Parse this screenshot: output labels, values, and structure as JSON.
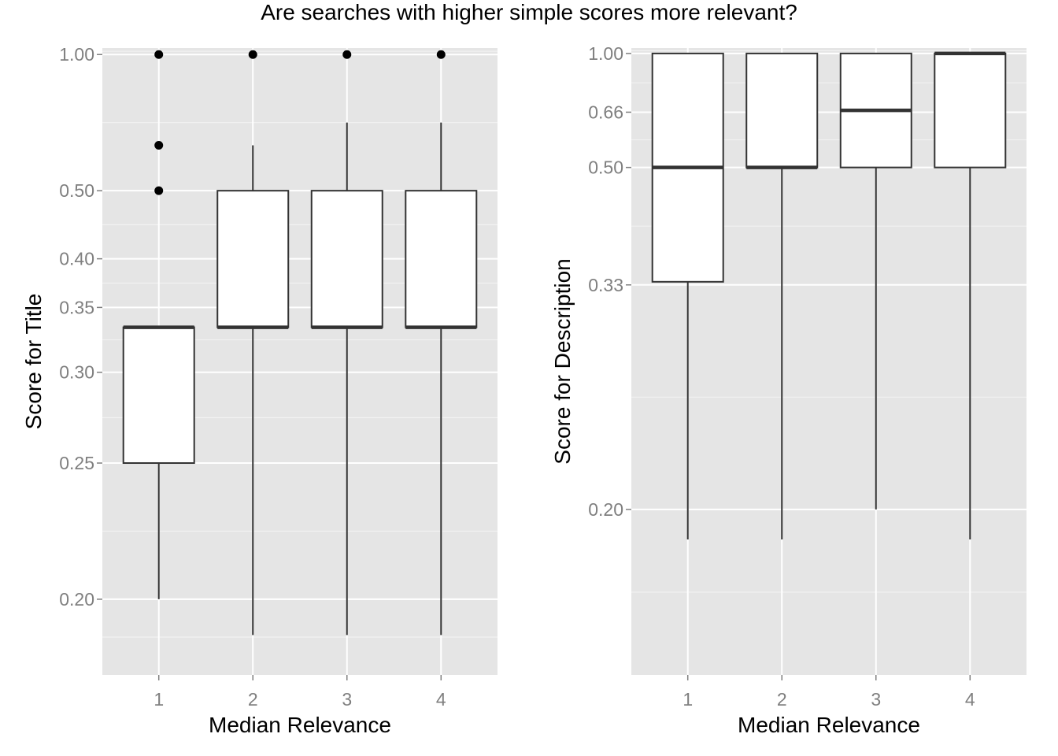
{
  "title": "Are searches with higher simple scores more relevant?",
  "chart_data": [
    {
      "type": "boxplot",
      "xlabel": "Median Relevance",
      "ylabel": "Score for Title",
      "y_scale": "reciprocal",
      "ylim": [
        0.18,
        1.05
      ],
      "y_ticks": [
        {
          "value": 1.0,
          "label": "1.00"
        },
        {
          "value": 0.5,
          "label": "0.50"
        },
        {
          "value": 0.4,
          "label": "0.40"
        },
        {
          "value": 0.35,
          "label": "0.35"
        },
        {
          "value": 0.3,
          "label": "0.30"
        },
        {
          "value": 0.25,
          "label": "0.25"
        },
        {
          "value": 0.2,
          "label": "0.20"
        }
      ],
      "categories": [
        "1",
        "2",
        "3",
        "4"
      ],
      "boxes": [
        {
          "category": "1",
          "whisker_low": 0.2,
          "q1": 0.25,
          "median": 0.333,
          "q3": 0.333,
          "whisker_high": 0.333,
          "outliers": [
            1.0,
            0.6,
            0.5
          ]
        },
        {
          "category": "2",
          "whisker_low": 0.19,
          "q1": 0.333,
          "median": 0.333,
          "q3": 0.5,
          "whisker_high": 0.6,
          "outliers": [
            1.0
          ]
        },
        {
          "category": "3",
          "whisker_low": 0.19,
          "q1": 0.333,
          "median": 0.333,
          "q3": 0.5,
          "whisker_high": 0.667,
          "outliers": [
            1.0
          ]
        },
        {
          "category": "4",
          "whisker_low": 0.19,
          "q1": 0.333,
          "median": 0.333,
          "q3": 0.5,
          "whisker_high": 0.667,
          "outliers": [
            1.0
          ]
        }
      ],
      "grid": true
    },
    {
      "type": "boxplot",
      "xlabel": "Median Relevance",
      "ylabel": "Score for Description",
      "y_scale": "reciprocal",
      "ylim": [
        0.155,
        1.05
      ],
      "y_ticks": [
        {
          "value": 1.0,
          "label": "1.00"
        },
        {
          "value": 0.66,
          "label": "0.66"
        },
        {
          "value": 0.5,
          "label": "0.50"
        },
        {
          "value": 0.33,
          "label": "0.33"
        },
        {
          "value": 0.2,
          "label": "0.20"
        }
      ],
      "categories": [
        "1",
        "2",
        "3",
        "4"
      ],
      "boxes": [
        {
          "category": "1",
          "whisker_low": 0.19,
          "q1": 0.333,
          "median": 0.5,
          "q3": 1.0,
          "whisker_high": 1.0,
          "outliers": []
        },
        {
          "category": "2",
          "whisker_low": 0.19,
          "q1": 0.5,
          "median": 0.5,
          "q3": 1.0,
          "whisker_high": 1.0,
          "outliers": []
        },
        {
          "category": "3",
          "whisker_low": 0.2,
          "q1": 0.5,
          "median": 0.667,
          "q3": 1.0,
          "whisker_high": 1.0,
          "outliers": []
        },
        {
          "category": "4",
          "whisker_low": 0.19,
          "q1": 0.5,
          "median": 1.0,
          "q3": 1.0,
          "whisker_high": 1.0,
          "outliers": []
        }
      ],
      "grid": true
    }
  ]
}
